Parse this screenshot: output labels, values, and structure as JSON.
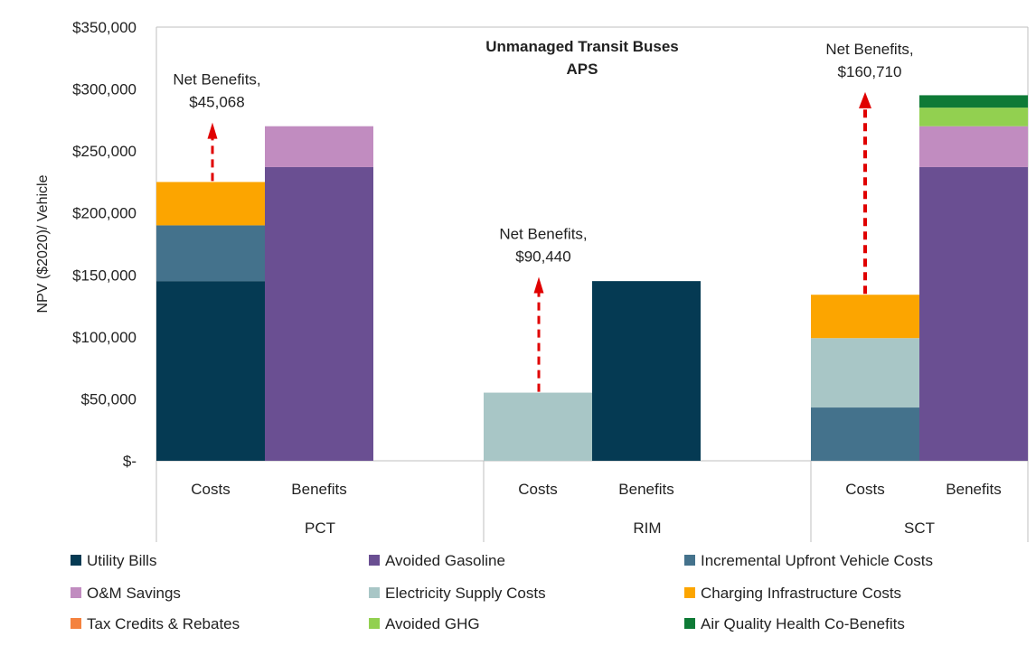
{
  "chart_data": {
    "type": "bar",
    "stacked": true,
    "title": "Unmanaged Transit Buses",
    "subtitle": "APS",
    "ylabel": "NPV ($2020)/ Vehicle",
    "xlabel": "",
    "ylim": [
      0,
      350000
    ],
    "yticks": [
      0,
      50000,
      100000,
      150000,
      200000,
      250000,
      300000,
      350000
    ],
    "ytick_labels": [
      "$-",
      "$50,000",
      "$100,000",
      "$150,000",
      "$200,000",
      "$250,000",
      "$300,000",
      "$350,000"
    ],
    "grid": false,
    "legend_position": "bottom",
    "groups": [
      {
        "name": "PCT",
        "bars": [
          {
            "label": "Costs",
            "segments": [
              {
                "series": "Utility Bills",
                "value": 145000
              },
              {
                "series": "Incremental Upfront Vehicle Costs",
                "value": 45000
              },
              {
                "series": "Charging Infrastructure Costs",
                "value": 35000
              }
            ]
          },
          {
            "label": "Benefits",
            "segments": [
              {
                "series": "Avoided Gasoline",
                "value": 237000
              },
              {
                "series": "O&M Savings",
                "value": 33000
              }
            ]
          }
        ],
        "net_benefit": {
          "line1": "Net Benefits,",
          "line2": "$45,068",
          "value": 45068
        }
      },
      {
        "name": "RIM",
        "bars": [
          {
            "label": "Costs",
            "segments": [
              {
                "series": "Electricity Supply Costs",
                "value": 55000
              }
            ]
          },
          {
            "label": "Benefits",
            "segments": [
              {
                "series": "Utility Bills",
                "value": 145000
              }
            ]
          }
        ],
        "net_benefit": {
          "line1": "Net Benefits,",
          "line2": "$90,440",
          "value": 90440
        }
      },
      {
        "name": "SCT",
        "bars": [
          {
            "label": "Costs",
            "segments": [
              {
                "series": "Incremental Upfront Vehicle Costs",
                "value": 43000
              },
              {
                "series": "Electricity Supply Costs",
                "value": 56000
              },
              {
                "series": "Charging Infrastructure Costs",
                "value": 35000
              }
            ]
          },
          {
            "label": "Benefits",
            "segments": [
              {
                "series": "Avoided Gasoline",
                "value": 237000
              },
              {
                "series": "O&M Savings",
                "value": 33000
              },
              {
                "series": "Avoided GHG",
                "value": 15000
              },
              {
                "series": "Air Quality Health Co-Benefits",
                "value": 10000
              }
            ]
          }
        ],
        "net_benefit": {
          "line1": "Net Benefits,",
          "line2": "$160,710",
          "value": 160710
        }
      }
    ],
    "legend": [
      {
        "name": "Utility Bills",
        "color": "#053a53"
      },
      {
        "name": "Avoided Gasoline",
        "color": "#6a4f92"
      },
      {
        "name": "Incremental Upfront Vehicle Costs",
        "color": "#44728c"
      },
      {
        "name": "O&M Savings",
        "color": "#c18cc0"
      },
      {
        "name": "Electricity Supply Costs",
        "color": "#a8c6c6"
      },
      {
        "name": "Charging Infrastructure Costs",
        "color": "#fca500"
      },
      {
        "name": "Tax Credits & Rebates",
        "color": "#f4823f"
      },
      {
        "name": "Avoided GHG",
        "color": "#92d050"
      },
      {
        "name": "Air Quality Health Co-Benefits",
        "color": "#0e7a36"
      }
    ],
    "arrow_color": "#e00000"
  }
}
